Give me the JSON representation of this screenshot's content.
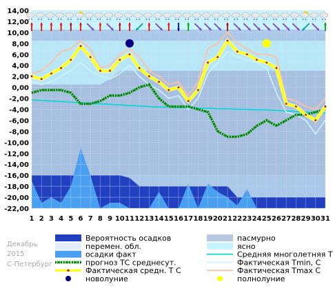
{
  "chart_data": {
    "type": "line",
    "corner_text": [
      "Декабрь",
      "2015",
      "С-Петербург"
    ],
    "x": [
      1,
      2,
      3,
      4,
      5,
      6,
      7,
      8,
      9,
      10,
      11,
      12,
      13,
      14,
      15,
      16,
      17,
      18,
      19,
      20,
      21,
      22,
      23,
      24,
      25,
      26,
      27,
      28,
      29,
      30,
      31
    ],
    "ylim": [
      -22,
      14
    ],
    "yticks": [
      "14,00",
      "12,00",
      "10,00",
      "8,00",
      "6,00",
      "4,00",
      "2,00",
      "0,00",
      "-2,00",
      "-4,00",
      "-6,00",
      "-8,00",
      "-10,00",
      "-12,00",
      "-14,00",
      "-16,00",
      "-18,00",
      "-20,00",
      "-22,00"
    ],
    "grid": true,
    "series": [
      {
        "name": "Фактическая средн. Т С",
        "color": "#ffff00",
        "values": [
          2,
          1.5,
          2.5,
          3.5,
          5,
          7.5,
          5.5,
          3,
          3,
          5,
          6,
          3.5,
          2,
          1,
          -0.5,
          0,
          -2.5,
          -0.5,
          4.5,
          5.5,
          8.5,
          6.5,
          6,
          5,
          4.5,
          3.5,
          -3,
          -3.5,
          -5,
          -6,
          -3.5
        ]
      },
      {
        "name": "Фактическая Tmin, C",
        "color": "#ccf4ff",
        "values": [
          1,
          0.5,
          1,
          2,
          3,
          4.5,
          3,
          2,
          1.5,
          2.5,
          4,
          2,
          0.5,
          -0.5,
          -2,
          -1.5,
          -4,
          -2,
          2.5,
          4.5,
          6.5,
          5.5,
          5,
          4.5,
          3.5,
          -1,
          -4.5,
          -5,
          -6,
          -8.5,
          -6
        ]
      },
      {
        "name": "Фактическая Tmax, C",
        "color": "#ffc0a0",
        "values": [
          2.5,
          3,
          4.5,
          6.5,
          7,
          8.5,
          7,
          3.5,
          4,
          6,
          7,
          5.5,
          3,
          2,
          0.5,
          1,
          -1.5,
          1,
          7,
          8,
          10,
          8,
          7,
          6,
          6,
          5.5,
          -2,
          -2.5,
          -3.5,
          -4,
          -2
        ]
      },
      {
        "name": "прогноз ТС среднесут.",
        "color": "#006400",
        "values": [
          -1,
          -0.5,
          -0.5,
          -0.5,
          -1,
          -3,
          -3,
          -2.5,
          -1.5,
          -1.5,
          -1,
          0,
          0.5,
          -2,
          -3.5,
          -3.5,
          -3.5,
          -4,
          -4.5,
          -8,
          -9,
          -9,
          -8.5,
          -7,
          -6,
          -7,
          -6,
          -5,
          -5,
          -4.5,
          -4
        ]
      },
      {
        "name": "Средняя многолетняя Т С",
        "color": "#00d8d8",
        "values": [
          -2.3,
          -2.4,
          -2.5,
          -2.6,
          -2.7,
          -2.8,
          -2.9,
          -3.0,
          -3.1,
          -3.2,
          -3.3,
          -3.4,
          -3.5,
          -3.6,
          -3.6,
          -3.7,
          -3.7,
          -3.8,
          -3.8,
          -3.9,
          -3.9,
          -4.0,
          -4.0,
          -4.1,
          -4.1,
          -4.2,
          -4.3,
          -4.4,
          -4.5,
          -4.6,
          -4.7
        ]
      }
    ],
    "cloud_bands": {
      "cloudy_top": [
        0.5,
        0.5,
        0.5,
        0.5,
        0.5,
        0.5,
        0.5,
        0.5,
        1.5,
        3.0,
        3.0,
        3.0,
        3.0,
        3.0,
        3.0,
        3.0,
        3.0,
        3.0,
        3.0,
        3.0,
        3.0,
        3.0,
        3.0,
        3.0,
        3.0,
        3.0,
        3.0,
        3.0,
        3.0,
        3.0,
        3.0
      ],
      "partly_top": [
        8.5,
        8.5,
        8.5,
        8.5,
        8.5,
        8.5,
        8.5,
        8.5,
        8.5,
        8.5,
        8.5,
        8.5,
        8.5,
        8.5,
        8.5,
        8.5,
        8.5,
        8.5,
        8.5,
        8.5,
        8.5,
        8.5,
        8.5,
        8.5,
        8.5,
        8.5,
        8.5,
        8.5,
        8.5,
        8.5,
        8.5
      ]
    },
    "precip_probability": [
      -16,
      -16,
      -16,
      -16,
      -16,
      -16,
      -16,
      -16,
      -16,
      -16,
      -16.5,
      -18,
      -18,
      -18,
      -18,
      -18,
      -18,
      -18,
      -18,
      -18,
      -18,
      -20,
      -20,
      -20,
      -20,
      -20,
      -20,
      -20,
      -20,
      -20,
      -20
    ],
    "precip_fact": [
      -17,
      -21,
      -20,
      -21,
      -18,
      -11,
      -16,
      -22,
      -21,
      -21,
      -22,
      -22,
      -22,
      -19,
      -22,
      -22,
      -17.5,
      -22,
      -17.5,
      -19,
      -20,
      -21.5,
      -18.5,
      -22,
      -22,
      -22,
      -22,
      -22,
      -22,
      -22,
      -22
    ],
    "moon": [
      {
        "day": 11,
        "phase": "новолуние",
        "temp": 8.0,
        "color": "#000080"
      },
      {
        "day": 25,
        "phase": "полнолуние",
        "temp": 8.0,
        "color": "#ffff00"
      }
    ],
    "weather_icons_row1": [
      "cloud",
      "cloud",
      "cloud",
      "cloud",
      "cloud",
      "cloud-sun",
      "cloud",
      "cloud",
      "cloud",
      "cloud",
      "cloud",
      "cloud",
      "cloud",
      "cloud",
      "cloud",
      "cloud",
      "cloud",
      "cloud",
      "cloud",
      "cloud",
      "cloud",
      "cloud",
      "cloud",
      "cloud",
      "cloud",
      "cloud",
      "cloud",
      "cloud",
      "cloud-sun",
      "cloud",
      "cloud"
    ],
    "wind_colors": [
      "#ff0000",
      "#ff0000",
      "#ff0000",
      "#ff0000",
      "#c00000",
      "#ff0000",
      "#8040c0",
      "#ff0000",
      "#8040c0",
      "#c00000",
      "#ff0000",
      "#00a0a0",
      "#ff0000",
      "#8040c0",
      "#ff0000",
      "#0000c0",
      "#00a000",
      "#8040c0",
      "#8040c0",
      "#8040c0",
      "#c00000",
      "#8040c0",
      "#8040c0",
      "#8040c0",
      "#8040c0",
      "#8040c0",
      "#8040c0",
      "#8040c0",
      "#00a0a0",
      "#8040c0",
      "#00a000"
    ],
    "wind_dirs": [
      "n",
      "n",
      "n",
      "n",
      "n",
      "n",
      "se",
      "n",
      "se",
      "n",
      "n",
      "sw",
      "n",
      "se",
      "n",
      "s",
      "n",
      "se",
      "se",
      "se",
      "n",
      "se",
      "se",
      "se",
      "se",
      "se",
      "se",
      "se",
      "sw",
      "se",
      "n"
    ],
    "legend": [
      {
        "label": "Вероятность осадков",
        "swatch": "box",
        "color": "#2040c0"
      },
      {
        "label": "пасмурно",
        "swatch": "box",
        "color": "#b8c8e0"
      },
      {
        "label": "перемен. обл.",
        "swatch": "box",
        "color": "#e0ecf8"
      },
      {
        "label": "ясно",
        "swatch": "box",
        "color": "#c8f4ff"
      },
      {
        "label": "осадки факт",
        "swatch": "box",
        "color": "#4aa0f0"
      },
      {
        "label": "Средняя многолетняя Т С",
        "swatch": "line",
        "color": "#00d8d8"
      },
      {
        "label": "прогноз ТС среднесут.",
        "swatch": "dots",
        "color": "#006400"
      },
      {
        "label": "Фактическая Tmin, C",
        "swatch": "line",
        "color": "#ccf4ff"
      },
      {
        "label": "Фактическая средн. Т С",
        "swatch": "yellow",
        "color": "#ffff00"
      },
      {
        "label": "Фактическая Tmax С",
        "swatch": "line",
        "color": "#ffc0a0"
      },
      {
        "label": "новолуние",
        "swatch": "dot",
        "color": "#000080"
      },
      {
        "label": "полнолуние",
        "swatch": "dot",
        "color": "#ffff00"
      }
    ],
    "colors": {
      "plot_bg": "#aac8e8",
      "partly": "#b8e8f8",
      "cloudy": "#a8c0e0",
      "clear": "#c8f4ff",
      "precip_prob": "#2040c0",
      "precip_fact": "#4aa0f0"
    }
  }
}
